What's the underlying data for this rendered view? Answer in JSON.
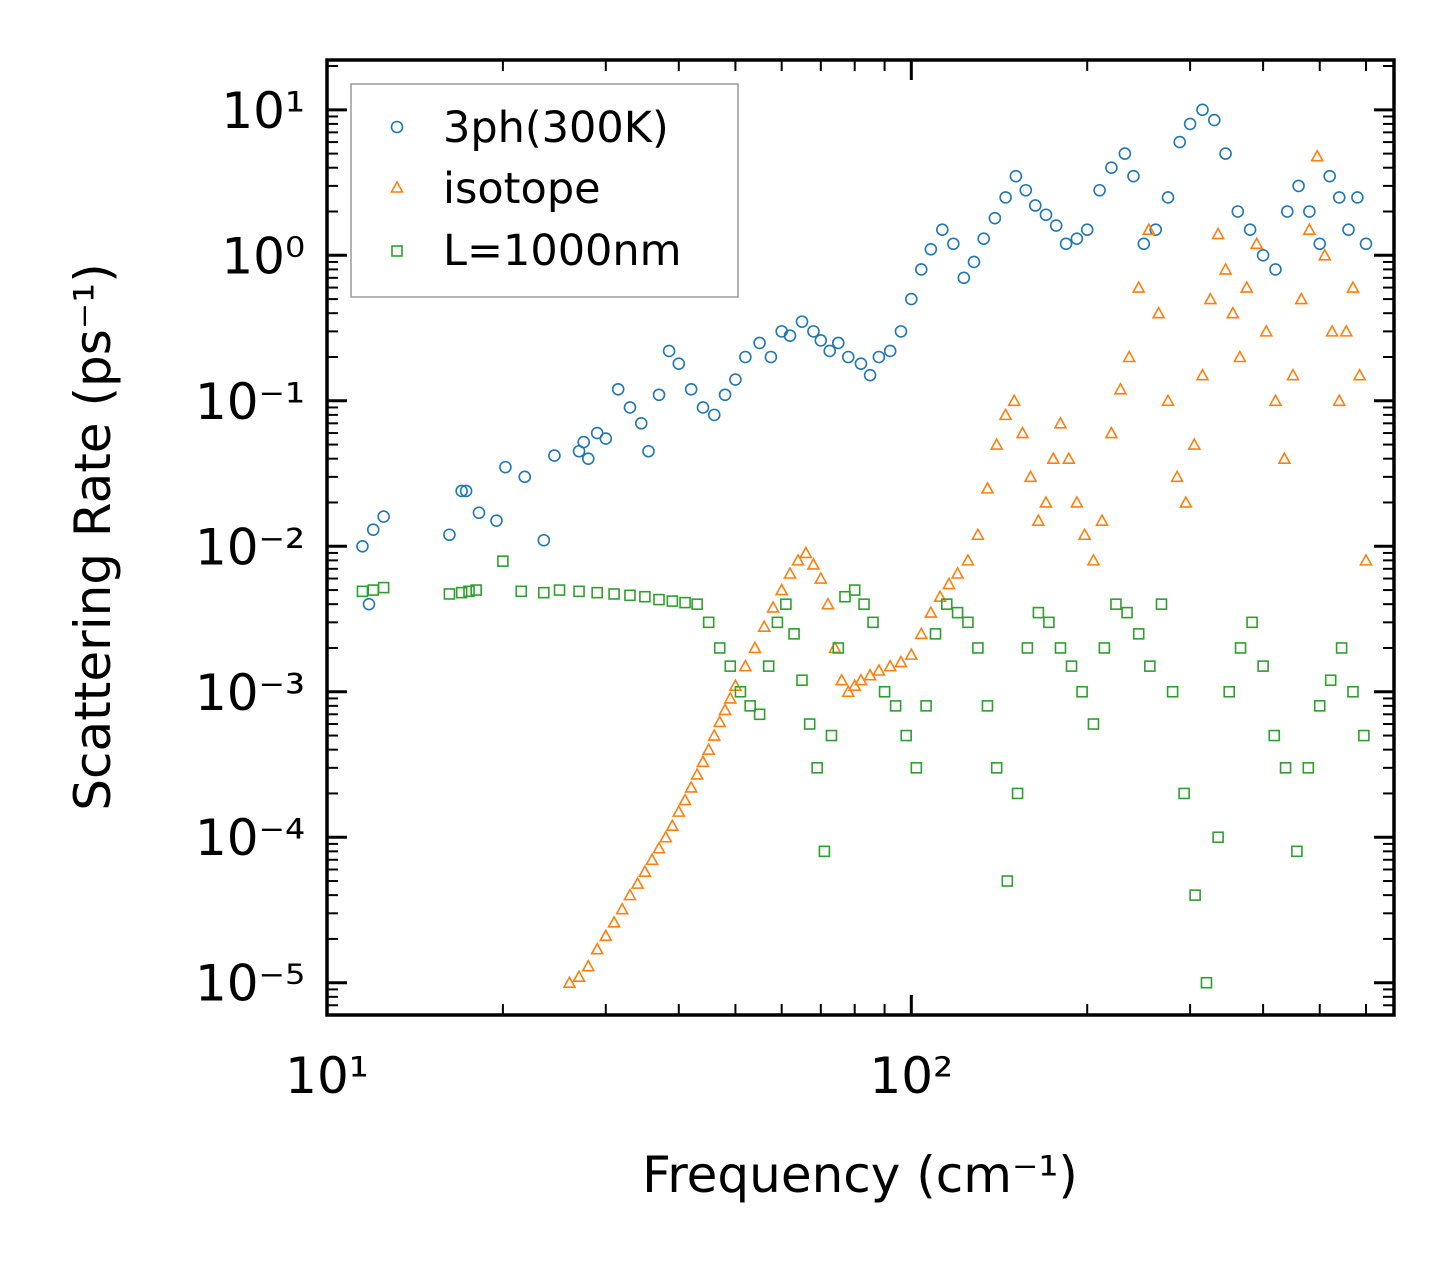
{
  "chart_data": {
    "type": "scatter",
    "xscale": "log",
    "yscale": "log",
    "xlabel": "Frequency (cm⁻¹)",
    "ylabel": "Scattering Rate (ps⁻¹)",
    "xlim": [
      10,
      670
    ],
    "ylim": [
      6e-06,
      22
    ],
    "x_ticks": [
      {
        "value": 10,
        "label": "10¹"
      },
      {
        "value": 100,
        "label": "10²"
      }
    ],
    "y_ticks": [
      {
        "value": 1e-05,
        "label": "10⁻⁵"
      },
      {
        "value": 0.0001,
        "label": "10⁻⁴"
      },
      {
        "value": 0.001,
        "label": "10⁻³"
      },
      {
        "value": 0.01,
        "label": "10⁻²"
      },
      {
        "value": 0.1,
        "label": "10⁻¹"
      },
      {
        "value": 1,
        "label": "10⁰"
      },
      {
        "value": 10,
        "label": "10¹"
      }
    ],
    "legend_position": "top-left",
    "series": [
      {
        "name": "3ph(300K)",
        "marker": "circle",
        "color": "#1f77b4",
        "x": [
          11.5,
          12.0,
          12.5,
          11.8,
          16.2,
          17.0,
          17.3,
          18.2,
          19.5,
          20.2,
          21.8,
          23.5,
          24.5,
          27.0,
          27.5,
          28.0,
          29.0,
          30.0,
          31.5,
          33.0,
          34.5,
          35.5,
          37.0,
          38.5,
          40.0,
          42.0,
          44.0,
          46.0,
          48.0,
          50.0,
          52.0,
          55.0,
          57.5,
          60.0,
          62.0,
          65.0,
          68.0,
          70.0,
          72.5,
          75.0,
          78.0,
          82.0,
          85.0,
          88.0,
          92.0,
          96.0,
          100.0,
          104.0,
          108.0,
          113.0,
          118.0,
          123.0,
          128.0,
          133.0,
          139.0,
          145.0,
          151.0,
          157.0,
          163.0,
          170.0,
          177.0,
          184.0,
          192.0,
          200.0,
          210.0,
          220.0,
          232.0,
          240.0,
          250.0,
          262.0,
          275.0,
          288.0,
          300.0,
          315.0,
          330.0,
          345.0,
          362.0,
          380.0,
          400.0,
          420.0,
          440.0,
          460.0,
          480.0,
          500.0,
          520.0,
          540.0,
          560.0,
          580.0,
          600.0
        ],
        "y": [
          0.01,
          0.013,
          0.016,
          0.004,
          0.012,
          0.024,
          0.024,
          0.017,
          0.015,
          0.035,
          0.03,
          0.011,
          0.042,
          0.045,
          0.052,
          0.04,
          0.06,
          0.055,
          0.12,
          0.09,
          0.07,
          0.045,
          0.11,
          0.22,
          0.18,
          0.12,
          0.09,
          0.08,
          0.11,
          0.14,
          0.2,
          0.25,
          0.2,
          0.3,
          0.28,
          0.35,
          0.3,
          0.26,
          0.22,
          0.25,
          0.2,
          0.18,
          0.15,
          0.2,
          0.22,
          0.3,
          0.5,
          0.8,
          1.1,
          1.5,
          1.2,
          0.7,
          0.9,
          1.3,
          1.8,
          2.5,
          3.5,
          2.8,
          2.2,
          1.9,
          1.6,
          1.2,
          1.3,
          1.5,
          2.8,
          4.0,
          5.0,
          3.5,
          1.2,
          1.5,
          2.5,
          6.0,
          8.0,
          10.0,
          8.5,
          5.0,
          2.0,
          1.5,
          1.0,
          0.8,
          2.0,
          3.0,
          2.0,
          1.2,
          3.5,
          2.5,
          1.5,
          2.5,
          1.2
        ]
      },
      {
        "name": "isotope",
        "marker": "triangle",
        "color": "#ff7f0e",
        "x": [
          26.0,
          27.0,
          28.0,
          29.0,
          30.0,
          31.0,
          32.0,
          33.0,
          34.0,
          35.0,
          36.0,
          37.0,
          38.0,
          39.0,
          40.0,
          41.0,
          42.0,
          43.0,
          44.0,
          45.0,
          46.0,
          47.0,
          48.0,
          49.0,
          50.0,
          52.0,
          54.0,
          56.0,
          58.0,
          60.0,
          62.0,
          64.0,
          66.0,
          68.0,
          70.0,
          72.0,
          74.0,
          76.0,
          78.0,
          80.0,
          82.0,
          85.0,
          88.0,
          92.0,
          96.0,
          100.0,
          104.0,
          108.0,
          112.0,
          116.0,
          120.0,
          125.0,
          130.0,
          135.0,
          140.0,
          145.0,
          150.0,
          155.0,
          160.0,
          165.0,
          170.0,
          175.0,
          180.0,
          186.0,
          192.0,
          198.0,
          205.0,
          212.0,
          220.0,
          228.0,
          236.0,
          245.0,
          255.0,
          265.0,
          275.0,
          285.0,
          295.0,
          305.0,
          315.0,
          325.0,
          335.0,
          345.0,
          355.0,
          365.0,
          375.0,
          390.0,
          405.0,
          420.0,
          435.0,
          450.0,
          465.0,
          480.0,
          495.0,
          510.0,
          525.0,
          540.0,
          555.0,
          570.0,
          585.0,
          600.0
        ],
        "y": [
          1e-05,
          1.1e-05,
          1.3e-05,
          1.7e-05,
          2.1e-05,
          2.6e-05,
          3.2e-05,
          4e-05,
          4.8e-05,
          5.8e-05,
          7e-05,
          8.4e-05,
          0.0001,
          0.00012,
          0.00015,
          0.00018,
          0.00022,
          0.00027,
          0.00033,
          0.0004,
          0.0005,
          0.00062,
          0.00075,
          0.0009,
          0.0011,
          0.0015,
          0.002,
          0.0028,
          0.0038,
          0.005,
          0.0065,
          0.008,
          0.009,
          0.0075,
          0.006,
          0.004,
          0.002,
          0.0012,
          0.001,
          0.0011,
          0.0012,
          0.0013,
          0.0014,
          0.0015,
          0.0016,
          0.0018,
          0.0025,
          0.0035,
          0.0045,
          0.0055,
          0.0065,
          0.008,
          0.012,
          0.025,
          0.05,
          0.08,
          0.1,
          0.06,
          0.03,
          0.015,
          0.02,
          0.04,
          0.07,
          0.04,
          0.02,
          0.012,
          0.008,
          0.015,
          0.06,
          0.12,
          0.2,
          0.6,
          1.5,
          0.4,
          0.1,
          0.03,
          0.02,
          0.05,
          0.15,
          0.5,
          1.4,
          0.8,
          0.4,
          0.2,
          0.6,
          1.2,
          0.3,
          0.1,
          0.04,
          0.15,
          0.5,
          1.5,
          4.8,
          1.0,
          0.3,
          0.1,
          0.3,
          0.6,
          0.15,
          0.008
        ]
      },
      {
        "name": "L=1000nm",
        "marker": "square",
        "color": "#2ca02c",
        "x": [
          11.5,
          12.0,
          12.5,
          16.2,
          17.0,
          17.5,
          18.0,
          20.0,
          21.5,
          23.5,
          25.0,
          27.0,
          29.0,
          31.0,
          33.0,
          35.0,
          37.0,
          39.0,
          41.0,
          43.0,
          45.0,
          47.0,
          49.0,
          51.0,
          53.0,
          55.0,
          57.0,
          59.0,
          61.0,
          63.0,
          65.0,
          67.0,
          69.0,
          71.0,
          73.0,
          75.0,
          77.0,
          80.0,
          83.0,
          86.0,
          90.0,
          94.0,
          98.0,
          102.0,
          106.0,
          110.0,
          115.0,
          120.0,
          125.0,
          130.0,
          135.0,
          140.0,
          146.0,
          152.0,
          158.0,
          165.0,
          172.0,
          180.0,
          188.0,
          196.0,
          205.0,
          214.0,
          224.0,
          234.0,
          245.0,
          256.0,
          268.0,
          280.0,
          293.0,
          306.0,
          320.0,
          335.0,
          350.0,
          366.0,
          383.0,
          400.0,
          418.0,
          437.0,
          457.0,
          478.0,
          500.0,
          522.0,
          545.0,
          570.0,
          595.0
        ],
        "y": [
          0.0049,
          0.005,
          0.0052,
          0.0047,
          0.0048,
          0.0049,
          0.005,
          0.0079,
          0.0049,
          0.0048,
          0.005,
          0.0049,
          0.0048,
          0.0047,
          0.0046,
          0.0045,
          0.0043,
          0.0042,
          0.0041,
          0.004,
          0.003,
          0.002,
          0.0015,
          0.001,
          0.0008,
          0.0007,
          0.0015,
          0.003,
          0.004,
          0.0025,
          0.0012,
          0.0006,
          0.0003,
          8e-05,
          0.0005,
          0.002,
          0.0045,
          0.005,
          0.004,
          0.003,
          0.001,
          0.0008,
          0.0005,
          0.0003,
          0.0008,
          0.0025,
          0.004,
          0.0035,
          0.003,
          0.002,
          0.0008,
          0.0003,
          5e-05,
          0.0002,
          0.002,
          0.0035,
          0.003,
          0.002,
          0.0015,
          0.001,
          0.0006,
          0.002,
          0.004,
          0.0035,
          0.0025,
          0.0015,
          0.004,
          0.001,
          0.0002,
          4e-05,
          1e-05,
          0.0001,
          0.001,
          0.002,
          0.003,
          0.0015,
          0.0005,
          0.0003,
          8e-05,
          0.0003,
          0.0008,
          0.0012,
          0.002,
          0.001,
          0.0005
        ]
      }
    ]
  }
}
